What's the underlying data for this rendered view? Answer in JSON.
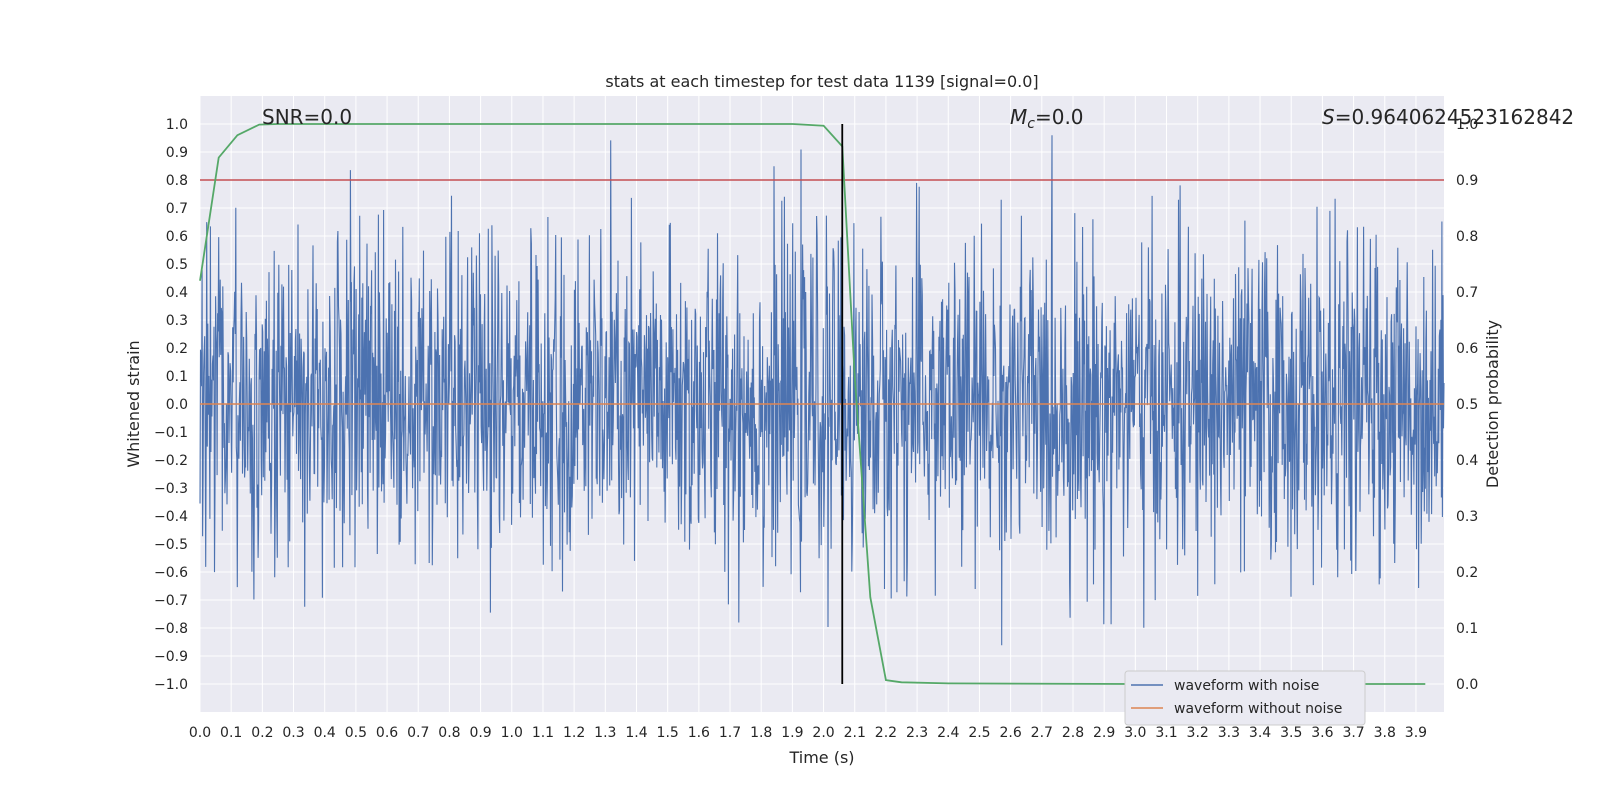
{
  "chart_data": {
    "type": "line",
    "title": "stats at each timestep for test data 1139 [signal=0.0]",
    "xlabel": "Time (s)",
    "ylabel": "Whitened strain",
    "y2label": "Detection probability",
    "xlim": [
      0.0,
      3.99
    ],
    "ylim": [
      -1.1,
      1.1
    ],
    "y2lim": [
      -0.05,
      1.05
    ],
    "xticks": [
      "0.0",
      "0.1",
      "0.2",
      "0.3",
      "0.4",
      "0.5",
      "0.6",
      "0.7",
      "0.8",
      "0.9",
      "1.0",
      "1.1",
      "1.2",
      "1.3",
      "1.4",
      "1.5",
      "1.6",
      "1.7",
      "1.8",
      "1.9",
      "2.0",
      "2.1",
      "2.2",
      "2.3",
      "2.4",
      "2.5",
      "2.6",
      "2.7",
      "2.8",
      "2.9",
      "3.0",
      "3.1",
      "3.2",
      "3.3",
      "3.4",
      "3.5",
      "3.6",
      "3.7",
      "3.8",
      "3.9"
    ],
    "yticks": [
      "1.0",
      "0.9",
      "0.8",
      "0.7",
      "0.6",
      "0.5",
      "0.4",
      "0.3",
      "0.2",
      "0.1",
      "0.0",
      "−0.1",
      "−0.2",
      "−0.3",
      "−0.4",
      "−0.5",
      "−0.6",
      "−0.7",
      "−0.8",
      "−0.9",
      "−1.0"
    ],
    "y2ticks": [
      "1.0",
      "0.9",
      "0.8",
      "0.7",
      "0.6",
      "0.5",
      "0.4",
      "0.3",
      "0.2",
      "0.1",
      "0.0"
    ],
    "annotations": {
      "snr": "SNR=0.0",
      "mc_symbol": "M",
      "mc_sub": "c",
      "mc_value": "=0.0",
      "s_symbol": "S",
      "s_value": "=0.9640624523162842"
    },
    "threshold_y2": 0.9,
    "marker_x": 2.06,
    "grid": true,
    "legend_position": "lower-right",
    "series": [
      {
        "name": "waveform with noise",
        "color": "#4c72b0",
        "axis": "left",
        "kind": "noise",
        "amplitude": 0.3,
        "x_start": 0.0,
        "x_end": 3.99
      },
      {
        "name": "waveform without noise",
        "color": "#dd8452",
        "axis": "left",
        "x": [
          0.0,
          3.99
        ],
        "y": [
          0.0,
          0.0
        ]
      },
      {
        "color": "#55a868",
        "axis": "right",
        "x": [
          0.0,
          0.06,
          0.12,
          0.19,
          0.25,
          0.5,
          1.0,
          1.5,
          1.9,
          2.0,
          2.06,
          2.1,
          2.15,
          2.2,
          2.25,
          2.4,
          3.0,
          3.5,
          3.93
        ],
        "y": [
          0.72,
          0.94,
          0.98,
          0.999,
          1.0,
          1.0,
          1.0,
          1.0,
          1.0,
          0.997,
          0.96,
          0.55,
          0.155,
          0.007,
          0.003,
          0.001,
          0.0,
          0.0,
          0.0
        ]
      }
    ],
    "colors": {
      "background": "#eaeaf2",
      "grid": "#ffffff",
      "threshold": "#c44e52",
      "marker": "#000000"
    }
  }
}
